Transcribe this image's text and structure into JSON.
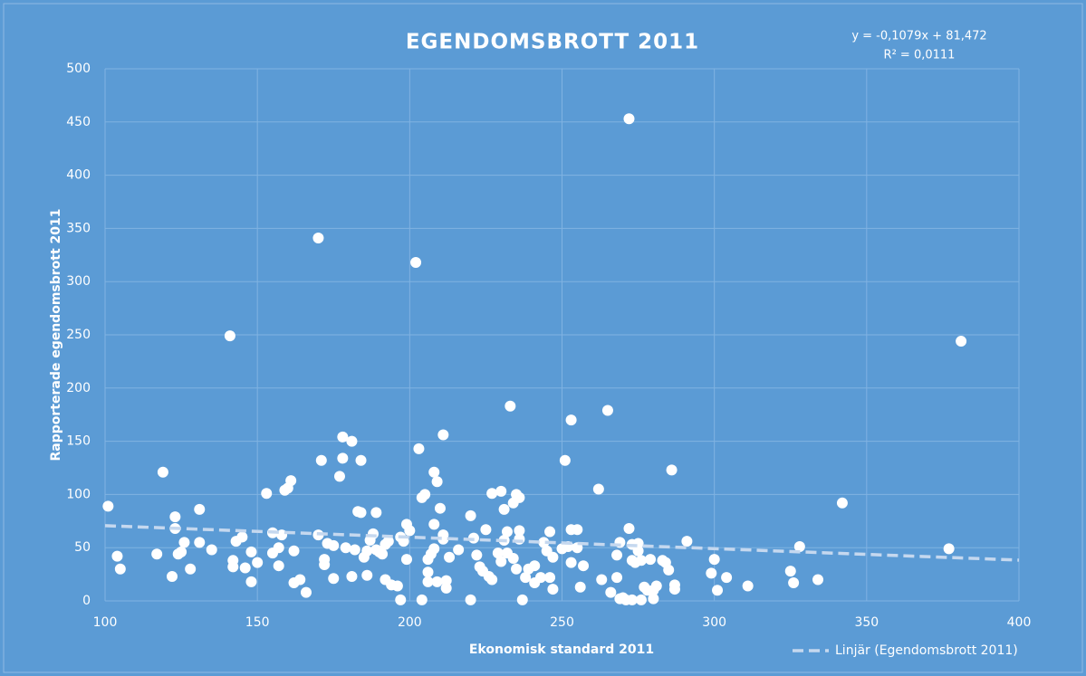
{
  "chart_data": {
    "type": "scatter",
    "title": "EGENDOMSBROTT 2011",
    "xlabel": "Ekonomisk standard 2011",
    "ylabel": "Rapporterade egendomsbrott 2011",
    "xlim": [
      100,
      400
    ],
    "xticks": [
      100,
      150,
      200,
      250,
      300,
      350,
      400
    ],
    "ylim": [
      0,
      500
    ],
    "yticks": [
      0,
      50,
      100,
      150,
      200,
      250,
      300,
      350,
      400,
      450,
      500
    ],
    "grid": true,
    "series": [
      {
        "name": "Egendomsbrott 2011",
        "color": "#ffffff",
        "x": [
          101,
          104,
          105,
          117,
          119,
          122,
          123,
          123,
          124,
          125,
          126,
          128,
          131,
          131,
          135,
          141,
          142,
          142,
          143,
          145,
          146,
          148,
          148,
          150,
          153,
          155,
          155,
          157,
          157,
          158,
          159,
          160,
          161,
          162,
          162,
          164,
          166,
          170,
          170,
          171,
          172,
          172,
          173,
          175,
          175,
          177,
          178,
          178,
          179,
          181,
          181,
          182,
          183,
          184,
          184,
          185,
          186,
          186,
          187,
          188,
          189,
          189,
          190,
          191,
          192,
          192,
          193,
          194,
          196,
          197,
          197,
          198,
          199,
          199,
          200,
          202,
          203,
          204,
          204,
          205,
          206,
          206,
          206,
          207,
          208,
          208,
          208,
          209,
          209,
          210,
          211,
          211,
          211,
          212,
          212,
          213,
          216,
          220,
          220,
          221,
          222,
          223,
          224,
          225,
          226,
          227,
          227,
          229,
          230,
          230,
          231,
          231,
          232,
          232,
          233,
          234,
          234,
          235,
          235,
          236,
          236,
          236,
          237,
          238,
          239,
          241,
          241,
          243,
          244,
          245,
          246,
          246,
          247,
          247,
          250,
          251,
          252,
          253,
          253,
          253,
          255,
          255,
          256,
          257,
          262,
          263,
          265,
          266,
          268,
          268,
          269,
          269,
          270,
          271,
          272,
          272,
          273,
          273,
          273,
          274,
          275,
          275,
          276,
          276,
          277,
          278,
          279,
          280,
          280,
          281,
          283,
          284,
          285,
          286,
          287,
          287,
          291,
          299,
          300,
          301,
          304,
          311,
          325,
          326,
          328,
          334,
          342,
          377,
          381
        ],
        "values": [
          89,
          42,
          30,
          44,
          121,
          23,
          68,
          79,
          44,
          46,
          55,
          30,
          86,
          55,
          48,
          249,
          38,
          32,
          56,
          60,
          31,
          46,
          18,
          36,
          101,
          45,
          64,
          50,
          33,
          62,
          104,
          106,
          113,
          47,
          17,
          20,
          8,
          341,
          62,
          132,
          34,
          39,
          54,
          52,
          21,
          117,
          154,
          134,
          50,
          23,
          150,
          48,
          84,
          83,
          132,
          41,
          24,
          47,
          57,
          63,
          48,
          83,
          46,
          44,
          20,
          53,
          56,
          15,
          14,
          1,
          60,
          56,
          39,
          72,
          66,
          318,
          143,
          1,
          97,
          100,
          27,
          39,
          18,
          44,
          121,
          49,
          72,
          18,
          112,
          87,
          156,
          58,
          62,
          19,
          12,
          41,
          48,
          80,
          1,
          59,
          43,
          32,
          28,
          67,
          23,
          20,
          101,
          45,
          103,
          37,
          86,
          57,
          45,
          65,
          183,
          40,
          92,
          100,
          30,
          97,
          66,
          58,
          1,
          22,
          30,
          33,
          17,
          22,
          55,
          47,
          22,
          65,
          41,
          11,
          49,
          132,
          51,
          36,
          67,
          170,
          67,
          50,
          13,
          33,
          105,
          20,
          179,
          8,
          22,
          43,
          2,
          55,
          3,
          1,
          68,
          453,
          1,
          38,
          53,
          36,
          54,
          47,
          1,
          38,
          13,
          10,
          39,
          2,
          10,
          14,
          38,
          36,
          29,
          123,
          15,
          11,
          56,
          26,
          39,
          10,
          22,
          14,
          28,
          17,
          51,
          20,
          92,
          49,
          244
        ]
      }
    ],
    "trendline": {
      "name": "Linjär (Egendomsbrott 2011)",
      "color": "#c5d8ef",
      "label": "y = -0,1079x + 81,472",
      "slope": -0.1079,
      "intercept": 81.472,
      "r2_label": "R² = 0,0111",
      "r2": 0.0111
    },
    "legend": "bottom-right"
  }
}
